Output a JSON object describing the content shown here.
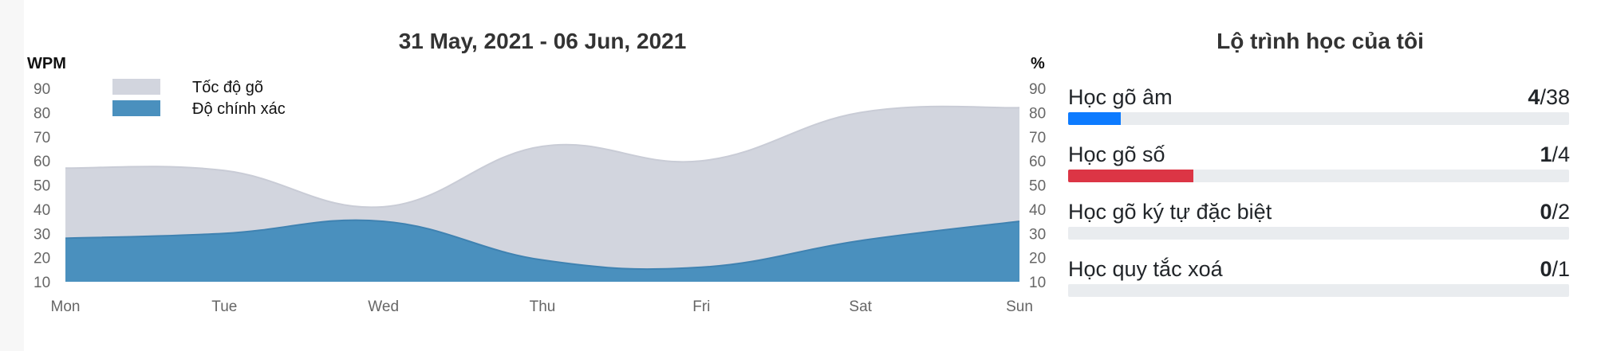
{
  "chart_data": {
    "type": "area",
    "title": "31 May, 2021 - 06 Jun, 2021",
    "categories": [
      "Mon",
      "Tue",
      "Wed",
      "Thu",
      "Fri",
      "Sat",
      "Sun"
    ],
    "left_axis": {
      "label": "WPM",
      "range": [
        10,
        90
      ],
      "ticks": [
        "10",
        "20",
        "30",
        "40",
        "50",
        "60",
        "70",
        "80",
        "90"
      ]
    },
    "right_axis": {
      "label": "%",
      "range": [
        10,
        90
      ],
      "ticks": [
        "10",
        "20",
        "30",
        "40",
        "50",
        "60",
        "70",
        "80",
        "90"
      ]
    },
    "legend_position": "top-left",
    "grid": false,
    "series": [
      {
        "name": "Tốc độ gõ",
        "color": "#d2d5de",
        "values": [
          57,
          56,
          41,
          66,
          60,
          80,
          82
        ]
      },
      {
        "name": "Độ chính xác",
        "color": "#4a90be",
        "values": [
          28,
          30,
          35,
          19,
          16,
          27,
          35
        ]
      }
    ]
  },
  "progress": {
    "title": "Lộ trình học của tôi",
    "courses": [
      {
        "name": "Học gõ âm",
        "done": "4",
        "total": "/38",
        "fraction": 0.105,
        "color": "#0d7bff"
      },
      {
        "name": "Học gõ số",
        "done": "1",
        "total": "/4",
        "fraction": 0.25,
        "color": "#dc3545"
      },
      {
        "name": "Học gõ ký tự đặc biệt",
        "done": "0",
        "total": "/2",
        "fraction": 0,
        "color": "#6c757d"
      },
      {
        "name": "Học quy tắc xoá",
        "done": "0",
        "total": "/1",
        "fraction": 0,
        "color": "#6c757d"
      }
    ]
  }
}
